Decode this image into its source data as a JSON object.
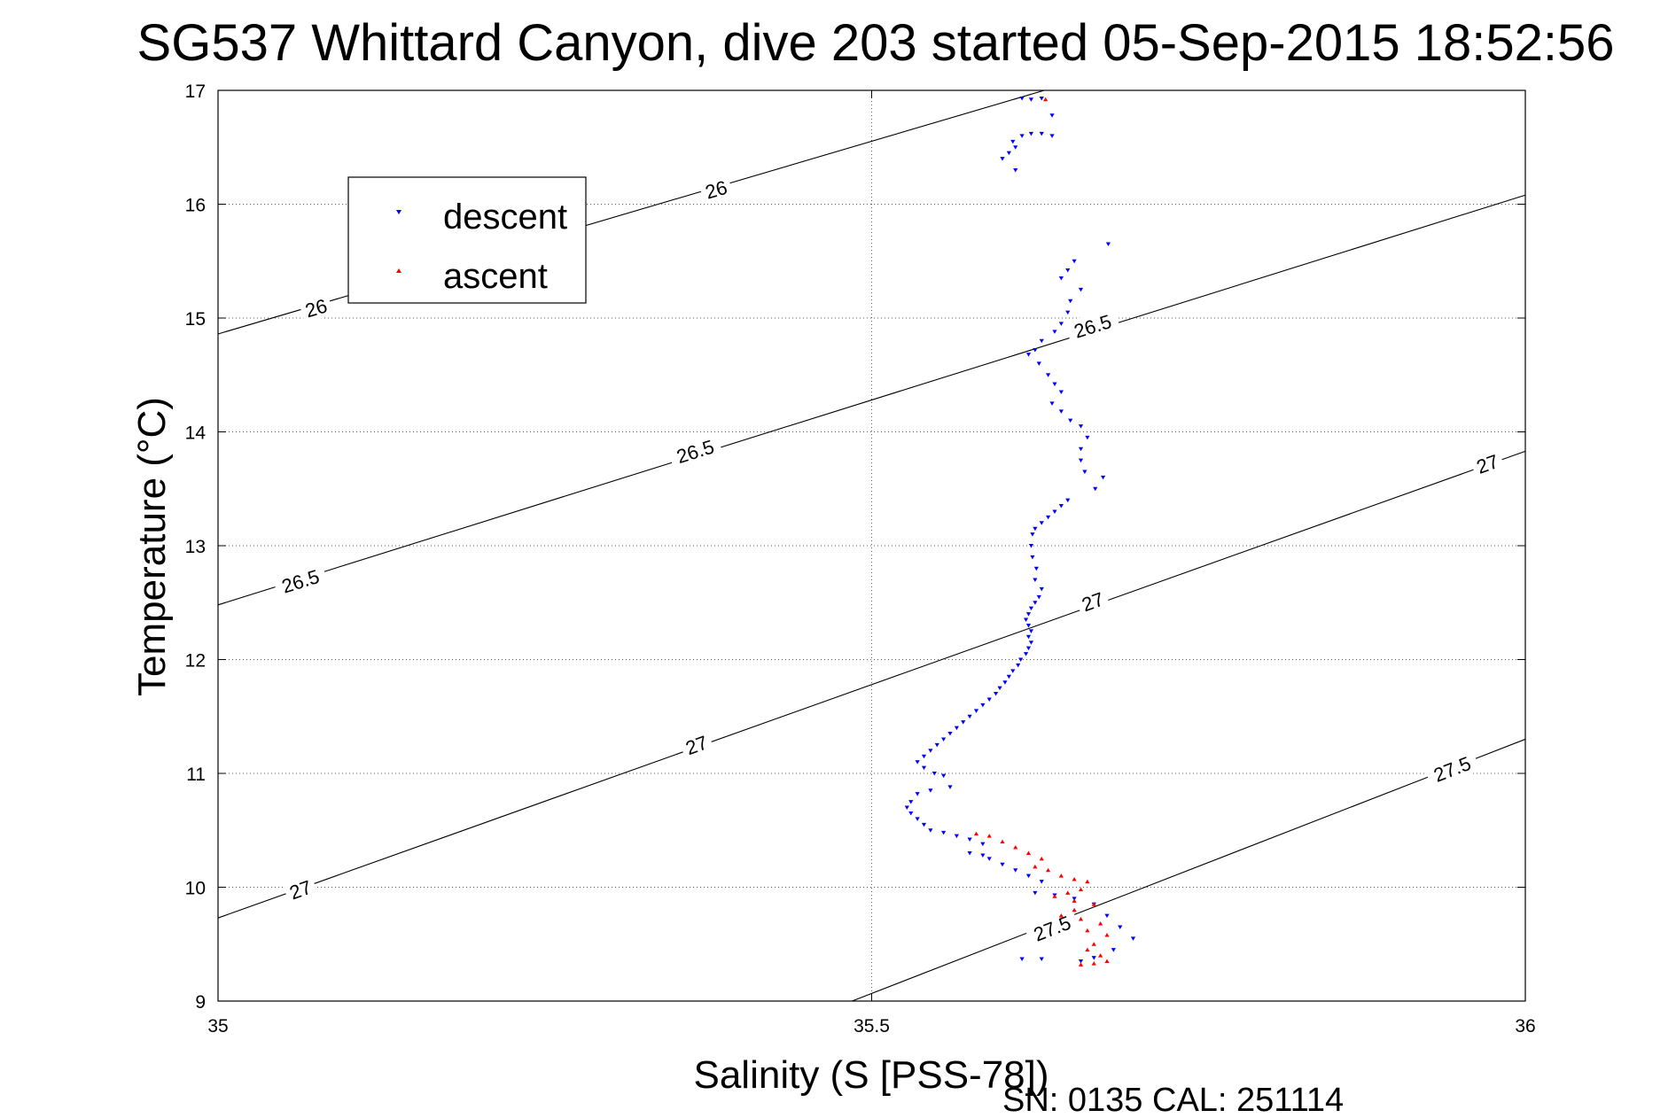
{
  "chart_data": {
    "type": "scatter",
    "title": "SG537 Whittard Canyon, dive 203 started 05-Sep-2015 18:52:56",
    "xlabel": "Salinity (S [PSS-78])",
    "ylabel": "Temperature (°C)",
    "xlim": [
      35,
      36
    ],
    "ylim": [
      9,
      17
    ],
    "x_ticks": [
      "35",
      "35.5",
      "36"
    ],
    "y_ticks": [
      "9",
      "10",
      "11",
      "12",
      "13",
      "14",
      "15",
      "16",
      "17"
    ],
    "grid": true,
    "legend_position": "top-left",
    "footer": "SN: 0135  CAL: 251114",
    "contours": [
      {
        "label": "26",
        "line": [
          [
            35.0,
            14.86
          ],
          [
            35.632,
            17.0
          ]
        ],
        "labels": [
          {
            "x": 35.075,
            "y": 15.09
          },
          {
            "x": 35.381,
            "y": 16.13
          }
        ]
      },
      {
        "label": "26.5",
        "line": [
          [
            35.0,
            12.48
          ],
          [
            36.0,
            16.08
          ]
        ],
        "labels": [
          {
            "x": 35.063,
            "y": 12.69
          },
          {
            "x": 35.365,
            "y": 13.83
          },
          {
            "x": 35.669,
            "y": 14.93
          }
        ]
      },
      {
        "label": "27",
        "line": [
          [
            35.0,
            9.73
          ],
          [
            36.0,
            13.83
          ]
        ],
        "labels": [
          {
            "x": 35.063,
            "y": 9.98
          },
          {
            "x": 35.366,
            "y": 11.25
          },
          {
            "x": 35.669,
            "y": 12.51
          },
          {
            "x": 35.971,
            "y": 13.72
          }
        ]
      },
      {
        "label": "27.5",
        "line": [
          [
            35.485,
            9.0
          ],
          [
            36.0,
            11.3
          ]
        ],
        "labels": [
          {
            "x": 35.638,
            "y": 9.64
          },
          {
            "x": 35.944,
            "y": 11.04
          }
        ]
      }
    ],
    "series": [
      {
        "name": "descent",
        "color": "#0000ff",
        "points": [
          [
            35.615,
            16.93
          ],
          [
            35.622,
            16.92
          ],
          [
            35.63,
            16.93
          ],
          [
            35.638,
            16.78
          ],
          [
            35.63,
            16.62
          ],
          [
            35.622,
            16.62
          ],
          [
            35.615,
            16.6
          ],
          [
            35.608,
            16.55
          ],
          [
            35.61,
            16.5
          ],
          [
            35.605,
            16.45
          ],
          [
            35.6,
            16.4
          ],
          [
            35.61,
            16.3
          ],
          [
            35.638,
            16.6
          ],
          [
            35.681,
            15.65
          ],
          [
            35.655,
            15.5
          ],
          [
            35.65,
            15.42
          ],
          [
            35.645,
            15.35
          ],
          [
            35.66,
            15.25
          ],
          [
            35.652,
            15.15
          ],
          [
            35.65,
            15.05
          ],
          [
            35.645,
            14.95
          ],
          [
            35.64,
            14.88
          ],
          [
            35.63,
            14.8
          ],
          [
            35.625,
            14.72
          ],
          [
            35.62,
            14.68
          ],
          [
            35.628,
            14.6
          ],
          [
            35.635,
            14.5
          ],
          [
            35.64,
            14.42
          ],
          [
            35.645,
            14.35
          ],
          [
            35.638,
            14.25
          ],
          [
            35.645,
            14.18
          ],
          [
            35.652,
            14.1
          ],
          [
            35.66,
            14.05
          ],
          [
            35.665,
            13.95
          ],
          [
            35.66,
            13.85
          ],
          [
            35.66,
            13.75
          ],
          [
            35.663,
            13.65
          ],
          [
            35.677,
            13.6
          ],
          [
            35.671,
            13.5
          ],
          [
            35.65,
            13.4
          ],
          [
            35.645,
            13.35
          ],
          [
            35.64,
            13.3
          ],
          [
            35.635,
            13.25
          ],
          [
            35.63,
            13.2
          ],
          [
            35.625,
            13.15
          ],
          [
            35.623,
            13.1
          ],
          [
            35.622,
            13.0
          ],
          [
            35.623,
            12.9
          ],
          [
            35.626,
            12.8
          ],
          [
            35.625,
            12.7
          ],
          [
            35.63,
            12.62
          ],
          [
            35.628,
            12.55
          ],
          [
            35.625,
            12.5
          ],
          [
            35.622,
            12.45
          ],
          [
            35.62,
            12.4
          ],
          [
            35.618,
            12.35
          ],
          [
            35.62,
            12.3
          ],
          [
            35.622,
            12.25
          ],
          [
            35.62,
            12.2
          ],
          [
            35.622,
            12.15
          ],
          [
            35.62,
            12.1
          ],
          [
            35.618,
            12.05
          ],
          [
            35.614,
            12.0
          ],
          [
            35.612,
            11.95
          ],
          [
            35.608,
            11.9
          ],
          [
            35.605,
            11.85
          ],
          [
            35.602,
            11.8
          ],
          [
            35.598,
            11.75
          ],
          [
            35.595,
            11.7
          ],
          [
            35.59,
            11.65
          ],
          [
            35.585,
            11.6
          ],
          [
            35.58,
            11.55
          ],
          [
            35.575,
            11.5
          ],
          [
            35.57,
            11.45
          ],
          [
            35.565,
            11.4
          ],
          [
            35.56,
            11.35
          ],
          [
            35.555,
            11.3
          ],
          [
            35.55,
            11.25
          ],
          [
            35.545,
            11.2
          ],
          [
            35.54,
            11.15
          ],
          [
            35.535,
            11.1
          ],
          [
            35.54,
            11.05
          ],
          [
            35.548,
            11.0
          ],
          [
            35.555,
            10.98
          ],
          [
            35.56,
            10.88
          ],
          [
            35.545,
            10.85
          ],
          [
            35.535,
            10.82
          ],
          [
            35.53,
            10.75
          ],
          [
            35.527,
            10.7
          ],
          [
            35.53,
            10.65
          ],
          [
            35.535,
            10.6
          ],
          [
            35.54,
            10.55
          ],
          [
            35.545,
            10.5
          ],
          [
            35.555,
            10.48
          ],
          [
            35.565,
            10.45
          ],
          [
            35.575,
            10.42
          ],
          [
            35.585,
            10.38
          ],
          [
            35.575,
            10.3
          ],
          [
            35.585,
            10.28
          ],
          [
            35.59,
            10.25
          ],
          [
            35.6,
            10.2
          ],
          [
            35.61,
            10.15
          ],
          [
            35.62,
            10.1
          ],
          [
            35.63,
            10.05
          ],
          [
            35.625,
            9.95
          ],
          [
            35.64,
            9.93
          ],
          [
            35.655,
            9.9
          ],
          [
            35.67,
            9.85
          ],
          [
            35.68,
            9.75
          ],
          [
            35.69,
            9.65
          ],
          [
            35.7,
            9.55
          ],
          [
            35.685,
            9.45
          ],
          [
            35.67,
            9.38
          ],
          [
            35.66,
            9.35
          ],
          [
            35.63,
            9.37
          ],
          [
            35.615,
            9.37
          ]
        ]
      },
      {
        "name": "ascent",
        "color": "#ff0000",
        "points": [
          [
            35.633,
            16.92
          ],
          [
            35.58,
            10.47
          ],
          [
            35.59,
            10.45
          ],
          [
            35.6,
            10.4
          ],
          [
            35.61,
            10.35
          ],
          [
            35.62,
            10.3
          ],
          [
            35.63,
            10.25
          ],
          [
            35.625,
            10.18
          ],
          [
            35.635,
            10.15
          ],
          [
            35.645,
            10.1
          ],
          [
            35.655,
            10.07
          ],
          [
            35.665,
            10.05
          ],
          [
            35.66,
            9.98
          ],
          [
            35.65,
            9.95
          ],
          [
            35.64,
            9.92
          ],
          [
            35.655,
            9.88
          ],
          [
            35.67,
            9.85
          ],
          [
            35.655,
            9.8
          ],
          [
            35.645,
            9.75
          ],
          [
            35.66,
            9.72
          ],
          [
            35.675,
            9.68
          ],
          [
            35.665,
            9.62
          ],
          [
            35.68,
            9.58
          ],
          [
            35.67,
            9.5
          ],
          [
            35.665,
            9.45
          ],
          [
            35.675,
            9.4
          ],
          [
            35.68,
            9.35
          ],
          [
            35.67,
            9.33
          ],
          [
            35.66,
            9.32
          ]
        ]
      }
    ]
  }
}
